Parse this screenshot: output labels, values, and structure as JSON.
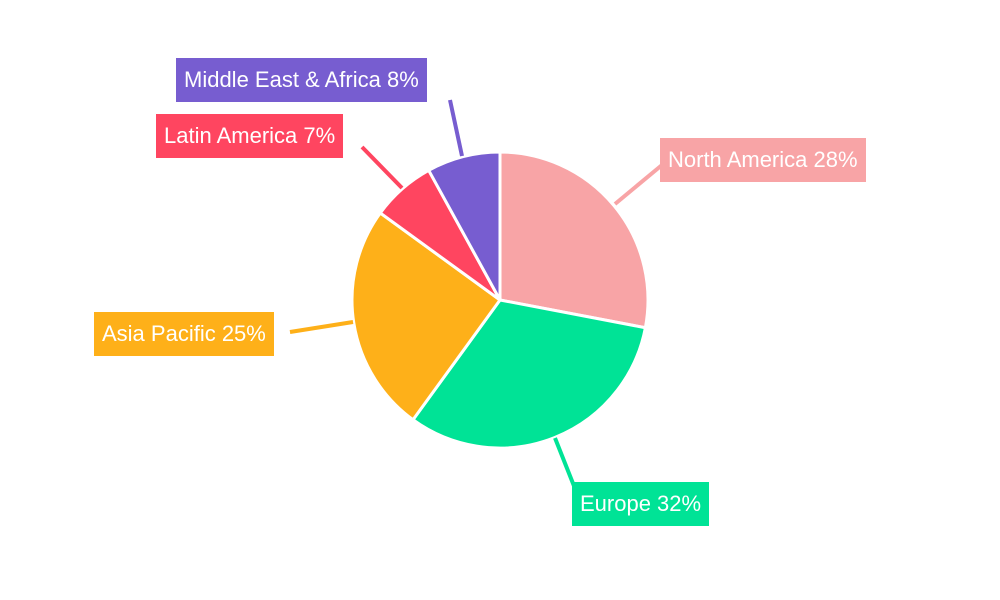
{
  "chart_data": {
    "type": "pie",
    "title": "",
    "start_angle_deg": 0,
    "direction": "clockwise",
    "slices": [
      {
        "label": "North America",
        "value": 28,
        "color": "#f8a4a6",
        "display": "North America 28%"
      },
      {
        "label": "Europe",
        "value": 32,
        "color": "#00e396",
        "display": "Europe 32%"
      },
      {
        "label": "Asia Pacific",
        "value": 25,
        "color": "#feb019",
        "display": "Asia Pacific 25%"
      },
      {
        "label": "Latin America",
        "value": 7,
        "color": "#ff4560",
        "display": "Latin America 7%"
      },
      {
        "label": "Middle East & Africa",
        "value": 8,
        "color": "#775dd0",
        "display": "Middle East & Africa 8%"
      }
    ],
    "legend": "none",
    "data_labels": "outside with leader lines"
  }
}
